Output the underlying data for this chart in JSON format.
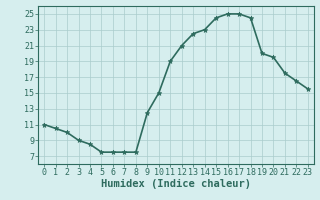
{
  "x_values": [
    0,
    1,
    2,
    3,
    4,
    5,
    6,
    7,
    8,
    9,
    10,
    11,
    12,
    13,
    14,
    15,
    16,
    17,
    18,
    19,
    20,
    21,
    22,
    23
  ],
  "y_values": [
    11,
    10.5,
    10,
    9,
    8.5,
    7.5,
    7.5,
    7.5,
    7.5,
    12.5,
    15,
    19,
    21,
    22.5,
    23,
    24.5,
    25,
    25,
    24.5,
    20,
    19.5,
    17.5,
    16.5,
    15.5
  ],
  "line_color": "#2e6b5e",
  "marker": "*",
  "marker_size": 3.5,
  "bg_color": "#d6eeee",
  "grid_color": "#aacccc",
  "xlabel": "Humidex (Indice chaleur)",
  "xlim": [
    -0.5,
    23.5
  ],
  "ylim": [
    6,
    26
  ],
  "yticks": [
    7,
    9,
    11,
    13,
    15,
    17,
    19,
    21,
    23,
    25
  ],
  "xticks": [
    0,
    1,
    2,
    3,
    4,
    5,
    6,
    7,
    8,
    9,
    10,
    11,
    12,
    13,
    14,
    15,
    16,
    17,
    18,
    19,
    20,
    21,
    22,
    23
  ],
  "tick_label_fontsize": 6.0,
  "xlabel_fontsize": 7.5,
  "line_width": 1.2
}
